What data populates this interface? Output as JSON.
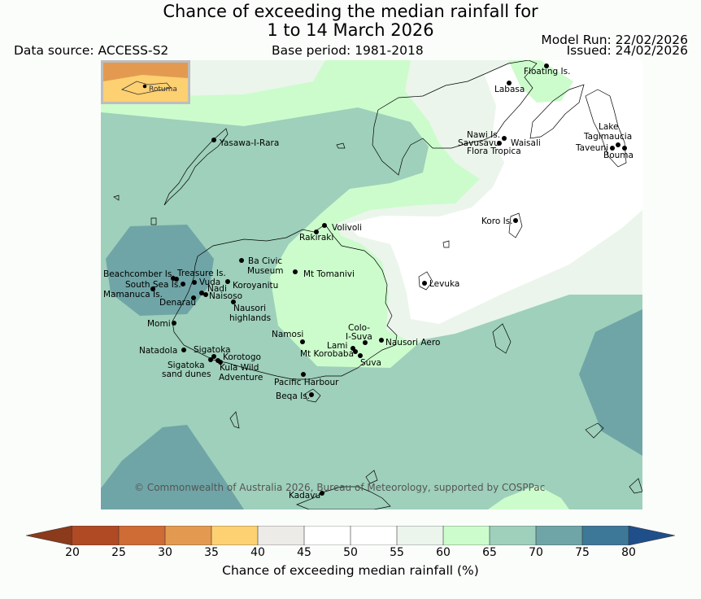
{
  "header": {
    "title_line1": "Chance of exceeding the median rainfall for",
    "title_line2": "1 to 14 March 2026",
    "data_source": "Data source: ACCESS-S2",
    "base_period": "Base period: 1981-2018",
    "model_run": "Model Run: 22/02/2026",
    "issued": "Issued: 24/02/2026"
  },
  "inset": {
    "label": "Rotuma"
  },
  "places": [
    {
      "id": "floating-is",
      "label": "Floating Is."
    },
    {
      "id": "labasa",
      "label": "Labasa"
    },
    {
      "id": "nawi-is",
      "label": "Nawi Is."
    },
    {
      "id": "savusavu",
      "label": "Savusavu"
    },
    {
      "id": "flora-tropica",
      "label": "Flora Tropica"
    },
    {
      "id": "waisali",
      "label": "Waisali"
    },
    {
      "id": "lake-tagimaucia",
      "label": "Lake"
    },
    {
      "id": "tagimaucia",
      "label": "Tagimaucia"
    },
    {
      "id": "taveuni",
      "label": "Taveuni"
    },
    {
      "id": "bouma",
      "label": "Bouma"
    },
    {
      "id": "yasawa-i-rara",
      "label": "Yasawa-I-Rara"
    },
    {
      "id": "koro-is",
      "label": "Koro Is."
    },
    {
      "id": "volivoli",
      "label": "Volivoli"
    },
    {
      "id": "rakiraki",
      "label": "Rakiraki"
    },
    {
      "id": "ba-civic",
      "label": "Ba Civic"
    },
    {
      "id": "museum",
      "label": "Museum"
    },
    {
      "id": "mt-tomanivi",
      "label": "Mt Tomanivi"
    },
    {
      "id": "beachcomber-is",
      "label": "Beachcomber Is."
    },
    {
      "id": "treasure-is",
      "label": "Treasure Is."
    },
    {
      "id": "south-sea-is",
      "label": "South Sea Is."
    },
    {
      "id": "vuda",
      "label": "Vuda"
    },
    {
      "id": "koroyanitu",
      "label": "Koroyanitu"
    },
    {
      "id": "nadi",
      "label": "Nadi"
    },
    {
      "id": "mamanuca-is",
      "label": "Mamanuca Is."
    },
    {
      "id": "naisoso",
      "label": "Naisoso"
    },
    {
      "id": "denarau",
      "label": "Denarau"
    },
    {
      "id": "nausori-highlands-1",
      "label": "Nausori"
    },
    {
      "id": "nausori-highlands-2",
      "label": "highlands"
    },
    {
      "id": "levuka",
      "label": "Levuka"
    },
    {
      "id": "momi",
      "label": "Momi"
    },
    {
      "id": "namosi",
      "label": "Namosi"
    },
    {
      "id": "colo-i-suva-1",
      "label": "Colo-"
    },
    {
      "id": "colo-i-suva-2",
      "label": "I-Suva"
    },
    {
      "id": "nausori-aero",
      "label": "Nausori Aero"
    },
    {
      "id": "lami",
      "label": "Lami"
    },
    {
      "id": "mt-korobaba",
      "label": "Mt Korobaba"
    },
    {
      "id": "suva",
      "label": "Suva"
    },
    {
      "id": "natadola",
      "label": "Natadola"
    },
    {
      "id": "sigatoka",
      "label": "Sigatoka"
    },
    {
      "id": "korotogo",
      "label": "Korotogo"
    },
    {
      "id": "sigatoka-sand-dunes-1",
      "label": "Sigatoka"
    },
    {
      "id": "sigatoka-sand-dunes-2",
      "label": "sand dunes"
    },
    {
      "id": "kula-wild-adventure-1",
      "label": "Kula Wild"
    },
    {
      "id": "kula-wild-adventure-2",
      "label": "Adventure"
    },
    {
      "id": "pacific-harbour",
      "label": "Pacific Harbour"
    },
    {
      "id": "beqa-is",
      "label": "Beqa Is."
    },
    {
      "id": "kadavu",
      "label": "Kadavu"
    }
  ],
  "copyright": "© Commonwealth of Australia 2026, Bureau of Meteorology, supported by COSPPac",
  "colorbar": {
    "label": "Chance of exceeding median rainfall (%)",
    "ticks": [
      "20",
      "25",
      "30",
      "35",
      "40",
      "45",
      "50",
      "55",
      "60",
      "65",
      "70",
      "75",
      "80"
    ],
    "colors": {
      "below20": "#8b3a1c",
      "c20_25": "#b04a24",
      "c25_30": "#cf6b35",
      "c30_35": "#e39a50",
      "c35_40": "#fdd071",
      "c40_45": "#ecebe8",
      "c45_50": "#ffffff",
      "c50_55": "#ffffff",
      "c55_60": "#ebf5ec",
      "c60_65": "#ccfccc",
      "c65_70": "#9ed0bb",
      "c70_75": "#6fa5a6",
      "c75_80": "#3e7899",
      "above80": "#1f4f8a"
    }
  }
}
